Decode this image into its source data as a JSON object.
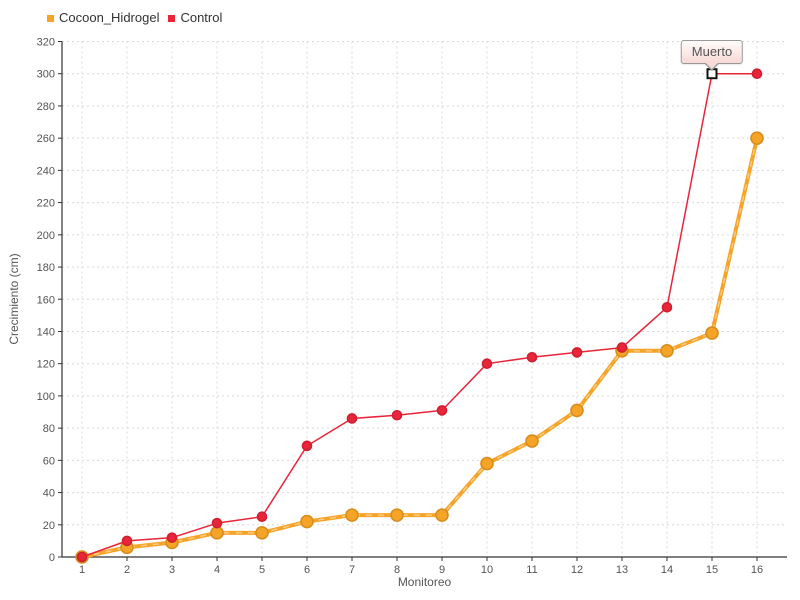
{
  "chart_data": {
    "type": "line",
    "title": "",
    "xlabel": "Monitoreo",
    "ylabel": "Crecimiento (cm)",
    "x": [
      1,
      2,
      3,
      4,
      5,
      6,
      7,
      8,
      9,
      10,
      11,
      12,
      13,
      14,
      15,
      16
    ],
    "xlim": [
      1,
      16
    ],
    "ylim": [
      0,
      320
    ],
    "ytick_step": 20,
    "grid": true,
    "legend_position": "top-left",
    "series": [
      {
        "name": "Cocoon_Hidrogel",
        "color": "#f6a428",
        "marker_stroke": "#d88e1c",
        "line_width": 4,
        "marker_radius": 6,
        "values": [
          0,
          6,
          9,
          15,
          15,
          22,
          26,
          26,
          26,
          58,
          72,
          91,
          128,
          128,
          139,
          260
        ]
      },
      {
        "name": "Control",
        "color": "#e82539",
        "marker_stroke": "#cf1f31",
        "line_width": 1.5,
        "marker_radius": 4.5,
        "values": [
          0,
          10,
          12,
          21,
          25,
          69,
          86,
          88,
          91,
          120,
          124,
          127,
          130,
          155,
          300,
          300
        ]
      }
    ],
    "annotation": {
      "text": "Muerto",
      "series": "Control",
      "x": 15,
      "y": 300,
      "marker": "open-square",
      "bg": "#f8d9d5",
      "border": "#999999"
    }
  },
  "style_colors": {
    "grid": "#d9d9d9",
    "axis": "#333333",
    "tick_label": "#545454"
  }
}
